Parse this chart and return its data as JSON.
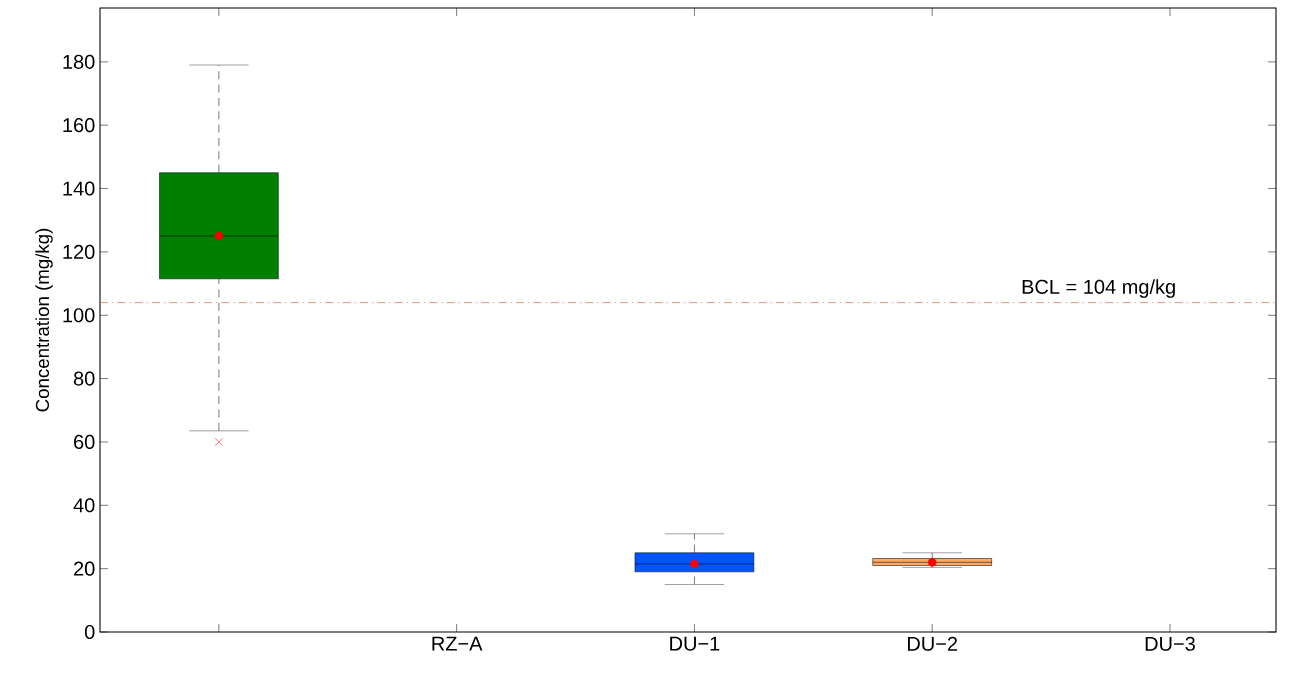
{
  "chart_data": {
    "type": "box",
    "ylabel": "Concentration (mg/kg)",
    "categories": [
      null,
      "RZ−A",
      "DU−1",
      "DU−2",
      "DU−3"
    ],
    "boxes": [
      {
        "low": 63.5,
        "q1": 111.5,
        "median": 125,
        "q3": 145,
        "high": 179,
        "mean": 125,
        "outliers": [
          60
        ]
      },
      null,
      {
        "low": 15,
        "q1": 19,
        "median": 21.5,
        "q3": 25,
        "high": 31,
        "mean": 21.5
      },
      {
        "low": 20.4,
        "q1": 21,
        "median": 22,
        "q3": 23.2,
        "high": 25,
        "mean": 22
      },
      null
    ],
    "colors": [
      "#007f00",
      null,
      "#0055ff",
      "#ffaa66",
      null
    ],
    "ylim": [
      0,
      197
    ],
    "yticks": [
      0,
      20,
      40,
      60,
      80,
      100,
      120,
      140,
      160,
      180
    ],
    "ref_lines": [
      {
        "axis": "y",
        "value": 104,
        "label": "BCL = 104 mg/kg",
        "color": "#cc4400",
        "line_style": "dashdot"
      }
    ],
    "grid": false
  }
}
